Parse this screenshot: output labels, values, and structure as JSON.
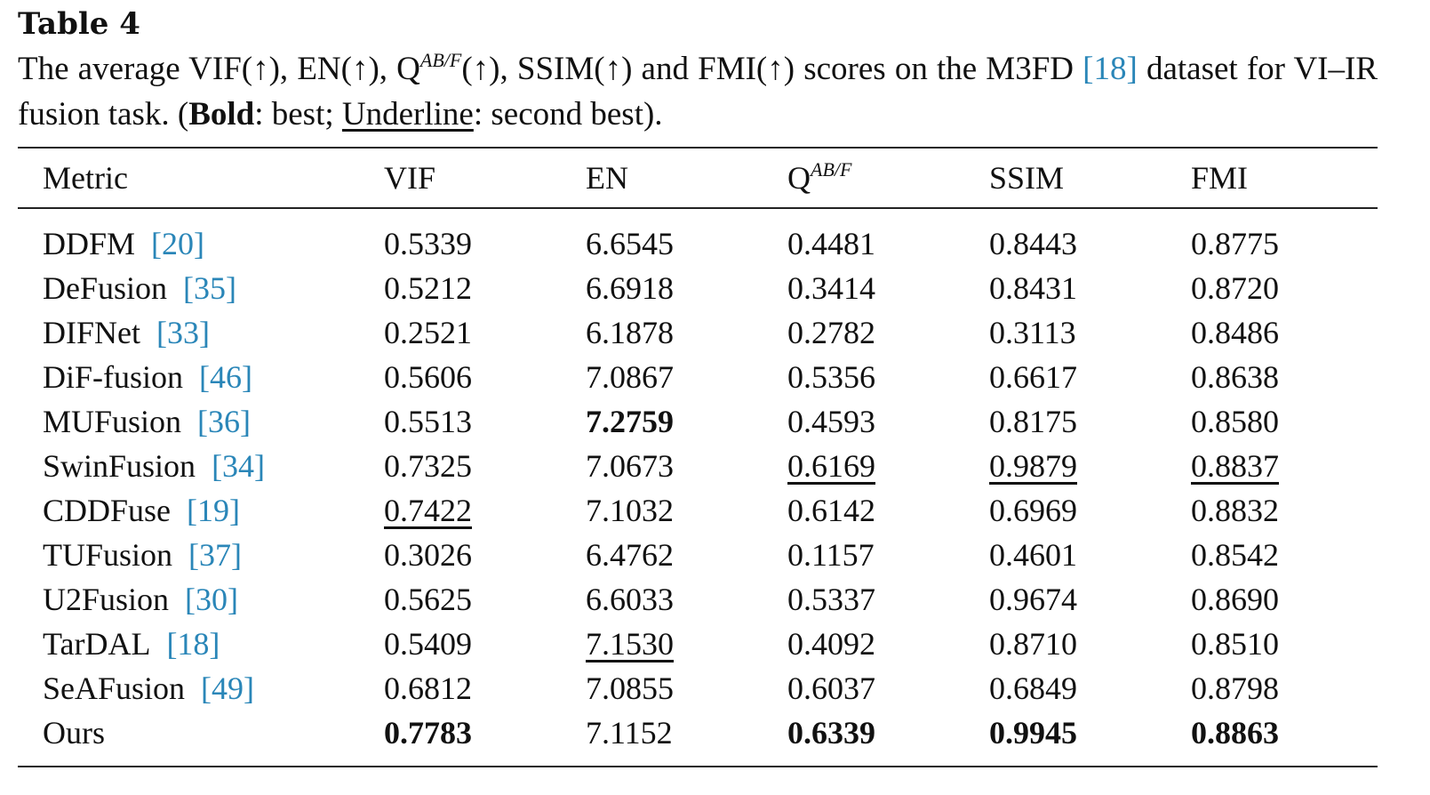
{
  "table_label": "Table 4",
  "caption": {
    "part1": "The average VIF(↑), EN(↑), Q",
    "part1_sup": "AB/F",
    "part2": "(↑), SSIM(↑) and FMI(↑) scores on the M3FD ",
    "ref": "[18]",
    "part3": " dataset for VI–IR fusion task. (",
    "bold_word": "Bold",
    "part4": ": best; ",
    "underline_word": "Underline",
    "part5": ": second best)."
  },
  "headers": {
    "metric": "Metric",
    "vif": "VIF",
    "en": "EN",
    "qabf": "Q",
    "qabf_sup": "AB/F",
    "ssim": "SSIM",
    "fmi": "FMI"
  },
  "rows": [
    {
      "method": "DDFM",
      "ref": "[20]",
      "vif": "0.5339",
      "en": "6.6545",
      "qabf": "0.4481",
      "ssim": "0.8443",
      "fmi": "0.8775"
    },
    {
      "method": "DeFusion",
      "ref": "[35]",
      "vif": "0.5212",
      "en": "6.6918",
      "qabf": "0.3414",
      "ssim": "0.8431",
      "fmi": "0.8720"
    },
    {
      "method": "DIFNet",
      "ref": "[33]",
      "vif": "0.2521",
      "en": "6.1878",
      "qabf": "0.2782",
      "ssim": "0.3113",
      "fmi": "0.8486"
    },
    {
      "method": "DiF-fusion",
      "ref": "[46]",
      "vif": "0.5606",
      "en": "7.0867",
      "qabf": "0.5356",
      "ssim": "0.6617",
      "fmi": "0.8638"
    },
    {
      "method": "MUFusion",
      "ref": "[36]",
      "vif": "0.5513",
      "en": "7.2759",
      "qabf": "0.4593",
      "ssim": "0.8175",
      "fmi": "0.8580"
    },
    {
      "method": "SwinFusion",
      "ref": "[34]",
      "vif": "0.7325",
      "en": "7.0673",
      "qabf": "0.6169",
      "ssim": "0.9879",
      "fmi": "0.8837"
    },
    {
      "method": "CDDFuse",
      "ref": "[19]",
      "vif": "0.7422",
      "en": "7.1032",
      "qabf": "0.6142",
      "ssim": "0.6969",
      "fmi": "0.8832"
    },
    {
      "method": "TUFusion",
      "ref": "[37]",
      "vif": "0.3026",
      "en": "6.4762",
      "qabf": "0.1157",
      "ssim": "0.4601",
      "fmi": "0.8542"
    },
    {
      "method": "U2Fusion",
      "ref": "[30]",
      "vif": "0.5625",
      "en": "6.6033",
      "qabf": "0.5337",
      "ssim": "0.9674",
      "fmi": "0.8690"
    },
    {
      "method": "TarDAL",
      "ref": "[18]",
      "vif": "0.5409",
      "en": "7.1530",
      "qabf": "0.4092",
      "ssim": "0.8710",
      "fmi": "0.8510"
    },
    {
      "method": "SeAFusion",
      "ref": "[49]",
      "vif": "0.6812",
      "en": "7.0855",
      "qabf": "0.6037",
      "ssim": "0.6849",
      "fmi": "0.8798"
    },
    {
      "method": "Ours",
      "ref": "",
      "vif": "0.7783",
      "en": "7.1152",
      "qabf": "0.6339",
      "ssim": "0.9945",
      "fmi": "0.8863"
    }
  ],
  "emphasis": {
    "best": {
      "vif": 11,
      "en": 4,
      "qabf": 11,
      "ssim": 11,
      "fmi": 11
    },
    "second": {
      "vif": 6,
      "en": 9,
      "qabf": 5,
      "ssim": 5,
      "fmi": 5
    }
  },
  "colors": {
    "text": "#111111",
    "citation": "#2a86b8",
    "rule": "#222222"
  }
}
